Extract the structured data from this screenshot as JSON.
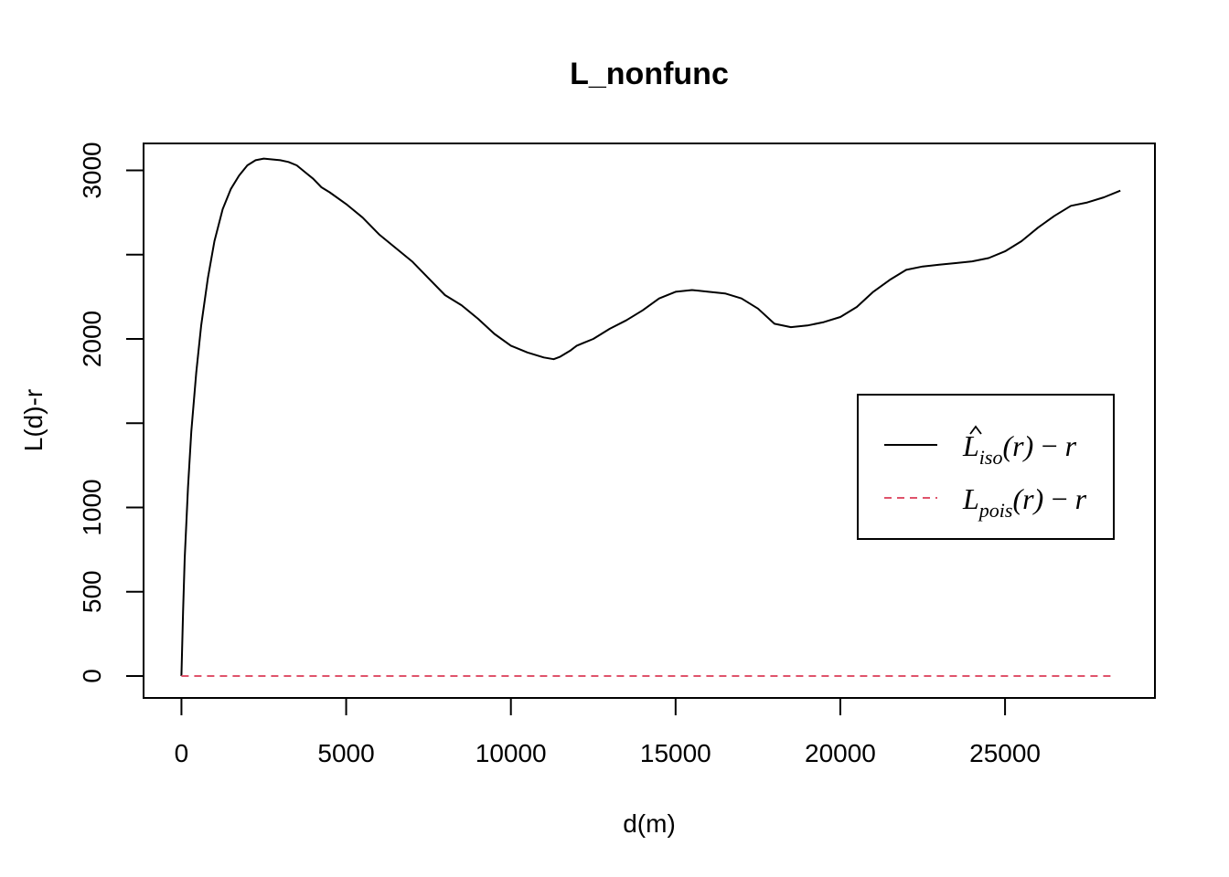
{
  "chart_data": {
    "type": "line",
    "title": "L_nonfunc",
    "xlabel": "d(m)",
    "ylabel": "L(d)-r",
    "xlim": [
      -1150,
      29550
    ],
    "ylim": [
      -130,
      3160
    ],
    "xticks": [
      0,
      5000,
      10000,
      15000,
      20000,
      25000
    ],
    "xtick_labels": [
      "0",
      "5000",
      "10000",
      "15000",
      "20000",
      "25000"
    ],
    "yticks": [
      0,
      500,
      1000,
      1500,
      2000,
      2500,
      3000
    ],
    "ytick_labels": [
      "0",
      "500",
      "1000",
      "",
      "2000",
      "",
      "3000"
    ],
    "grid": false,
    "legend_position": "right",
    "legend": [
      {
        "base": "L",
        "hat": true,
        "sub": "iso",
        "suffix": "(r) − r",
        "color": "#000000",
        "dash": "solid"
      },
      {
        "base": "L",
        "hat": false,
        "sub": "pois",
        "suffix": "(r) − r",
        "color": "#DF536B",
        "dash": "dashed"
      }
    ],
    "series": [
      {
        "key": "iso",
        "color": "#000000",
        "dash": "solid",
        "x": [
          0,
          50,
          100,
          200,
          300,
          450,
          600,
          800,
          1000,
          1250,
          1500,
          1750,
          2000,
          2250,
          2500,
          2750,
          3000,
          3250,
          3500,
          3750,
          4000,
          4250,
          4500,
          5000,
          5500,
          6000,
          6500,
          7000,
          7500,
          8000,
          8500,
          9000,
          9500,
          10000,
          10500,
          11000,
          11300,
          11500,
          11800,
          12000,
          12500,
          13000,
          13500,
          14000,
          14500,
          15000,
          15500,
          16000,
          16500,
          17000,
          17500,
          18000,
          18500,
          19000,
          19500,
          20000,
          20500,
          21000,
          21500,
          22000,
          22500,
          23000,
          23500,
          24000,
          24500,
          25000,
          25500,
          26000,
          26500,
          27000,
          27500,
          28000,
          28500
        ],
        "values": [
          0,
          380,
          700,
          1120,
          1450,
          1800,
          2080,
          2360,
          2580,
          2770,
          2890,
          2970,
          3030,
          3060,
          3070,
          3065,
          3060,
          3050,
          3030,
          2990,
          2950,
          2900,
          2870,
          2800,
          2720,
          2620,
          2540,
          2460,
          2360,
          2260,
          2200,
          2120,
          2030,
          1960,
          1920,
          1890,
          1880,
          1895,
          1930,
          1960,
          2000,
          2060,
          2110,
          2170,
          2240,
          2280,
          2290,
          2280,
          2270,
          2240,
          2180,
          2090,
          2070,
          2080,
          2100,
          2130,
          2190,
          2280,
          2350,
          2410,
          2430,
          2440,
          2450,
          2460,
          2480,
          2520,
          2580,
          2660,
          2730,
          2790,
          2810,
          2840,
          2880
        ]
      },
      {
        "key": "pois",
        "color": "#DF536B",
        "dash": "dashed",
        "x": [
          0,
          28300
        ],
        "values": [
          0,
          0
        ]
      }
    ]
  }
}
